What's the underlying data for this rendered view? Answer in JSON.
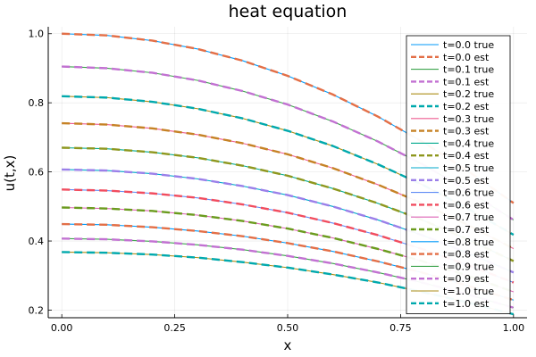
{
  "chart_data": {
    "type": "line",
    "title": "heat equation",
    "xlabel": "x",
    "ylabel": "u(t,x)",
    "xlim": [
      0.0,
      1.0
    ],
    "ylim": [
      0.2,
      1.0
    ],
    "grid": true,
    "legend_position": "right",
    "x_ticks": [
      "0.00",
      "0.25",
      "0.50",
      "0.75",
      "1.00"
    ],
    "y_ticks": [
      "0.2",
      "0.4",
      "0.6",
      "0.8",
      "1.0"
    ],
    "x": [
      0.0,
      0.1,
      0.2,
      0.3,
      0.4,
      0.5,
      0.6,
      0.7,
      0.8,
      0.9,
      1.0
    ],
    "series": [
      {
        "name": "t=0.0 true",
        "style": "solid",
        "color": "#009AFA",
        "values": [
          1.0,
          0.995,
          0.98,
          0.956,
          0.922,
          0.878,
          0.824,
          0.76,
          0.686,
          0.602,
          0.51
        ]
      },
      {
        "name": "t=0.0 est",
        "style": "dash",
        "color": "#E36F47",
        "values": [
          1.0,
          0.995,
          0.98,
          0.956,
          0.922,
          0.878,
          0.824,
          0.76,
          0.686,
          0.602,
          0.51
        ]
      },
      {
        "name": "t=0.1 true",
        "style": "solid",
        "color": "#3EA44E",
        "values": [
          0.905,
          0.9,
          0.887,
          0.865,
          0.834,
          0.795,
          0.746,
          0.688,
          0.621,
          0.545,
          0.461
        ]
      },
      {
        "name": "t=0.1 est",
        "style": "dash",
        "color": "#C271D2",
        "values": [
          0.905,
          0.9,
          0.887,
          0.865,
          0.834,
          0.795,
          0.746,
          0.688,
          0.621,
          0.545,
          0.461
        ]
      },
      {
        "name": "t=0.2 true",
        "style": "solid",
        "color": "#AC8D18",
        "values": [
          0.819,
          0.815,
          0.803,
          0.783,
          0.755,
          0.719,
          0.675,
          0.622,
          0.562,
          0.493,
          0.418
        ]
      },
      {
        "name": "t=0.2 est",
        "style": "dash",
        "color": "#00A9AD",
        "values": [
          0.819,
          0.815,
          0.803,
          0.783,
          0.755,
          0.719,
          0.675,
          0.622,
          0.562,
          0.493,
          0.418
        ]
      },
      {
        "name": "t=0.3 true",
        "style": "solid",
        "color": "#ED5D92",
        "values": [
          0.741,
          0.737,
          0.726,
          0.708,
          0.683,
          0.651,
          0.611,
          0.563,
          0.508,
          0.446,
          0.378
        ]
      },
      {
        "name": "t=0.3 est",
        "style": "dash",
        "color": "#C68225",
        "values": [
          0.741,
          0.737,
          0.726,
          0.708,
          0.683,
          0.651,
          0.611,
          0.563,
          0.508,
          0.446,
          0.378
        ]
      },
      {
        "name": "t=0.4 true",
        "style": "solid",
        "color": "#00A98D",
        "values": [
          0.67,
          0.667,
          0.657,
          0.641,
          0.618,
          0.589,
          0.552,
          0.509,
          0.46,
          0.404,
          0.342
        ]
      },
      {
        "name": "t=0.4 est",
        "style": "dash",
        "color": "#8E971E",
        "values": [
          0.67,
          0.667,
          0.657,
          0.641,
          0.618,
          0.589,
          0.552,
          0.509,
          0.46,
          0.404,
          0.342
        ]
      },
      {
        "name": "t=0.5 true",
        "style": "solid",
        "color": "#00A8CB",
        "values": [
          0.607,
          0.604,
          0.595,
          0.58,
          0.559,
          0.533,
          0.5,
          0.461,
          0.416,
          0.365,
          0.309
        ]
      },
      {
        "name": "t=0.5 est",
        "style": "dash",
        "color": "#9B7FE9",
        "values": [
          0.607,
          0.604,
          0.595,
          0.58,
          0.559,
          0.533,
          0.5,
          0.461,
          0.416,
          0.365,
          0.309
        ]
      },
      {
        "name": "t=0.6 true",
        "style": "solid",
        "color": "#618DF6",
        "values": [
          0.549,
          0.546,
          0.538,
          0.525,
          0.506,
          0.482,
          0.452,
          0.417,
          0.376,
          0.33,
          0.28
        ]
      },
      {
        "name": "t=0.6 est",
        "style": "dash",
        "color": "#F14C5E",
        "values": [
          0.549,
          0.546,
          0.538,
          0.525,
          0.506,
          0.482,
          0.452,
          0.417,
          0.376,
          0.33,
          0.28
        ]
      },
      {
        "name": "t=0.7 true",
        "style": "solid",
        "color": "#DD64B5",
        "values": [
          0.497,
          0.494,
          0.487,
          0.475,
          0.458,
          0.436,
          0.409,
          0.377,
          0.341,
          0.299,
          0.253
        ]
      },
      {
        "name": "t=0.7 est",
        "style": "dash",
        "color": "#6B9B1E",
        "values": [
          0.497,
          0.494,
          0.487,
          0.475,
          0.458,
          0.436,
          0.409,
          0.377,
          0.341,
          0.299,
          0.253
        ]
      },
      {
        "name": "t=0.8 true",
        "style": "solid",
        "color": "#009AFA",
        "values": [
          0.449,
          0.447,
          0.44,
          0.429,
          0.414,
          0.394,
          0.37,
          0.341,
          0.308,
          0.27,
          0.229
        ]
      },
      {
        "name": "t=0.8 est",
        "style": "dash",
        "color": "#E36F47",
        "values": [
          0.449,
          0.447,
          0.44,
          0.429,
          0.414,
          0.394,
          0.37,
          0.341,
          0.308,
          0.27,
          0.229
        ]
      },
      {
        "name": "t=0.9 true",
        "style": "solid",
        "color": "#3EA44E",
        "values": [
          0.407,
          0.405,
          0.399,
          0.389,
          0.375,
          0.357,
          0.335,
          0.309,
          0.279,
          0.245,
          0.207
        ]
      },
      {
        "name": "t=0.9 est",
        "style": "dash",
        "color": "#C271D2",
        "values": [
          0.407,
          0.405,
          0.399,
          0.389,
          0.375,
          0.357,
          0.335,
          0.309,
          0.279,
          0.245,
          0.207
        ]
      },
      {
        "name": "t=1.0 true",
        "style": "solid",
        "color": "#AC8D18",
        "values": [
          0.368,
          0.366,
          0.361,
          0.352,
          0.339,
          0.323,
          0.303,
          0.28,
          0.252,
          0.222,
          0.188
        ]
      },
      {
        "name": "t=1.0 est",
        "style": "dash",
        "color": "#00A9AD",
        "values": [
          0.368,
          0.366,
          0.361,
          0.352,
          0.339,
          0.323,
          0.303,
          0.28,
          0.252,
          0.222,
          0.188
        ]
      }
    ]
  }
}
